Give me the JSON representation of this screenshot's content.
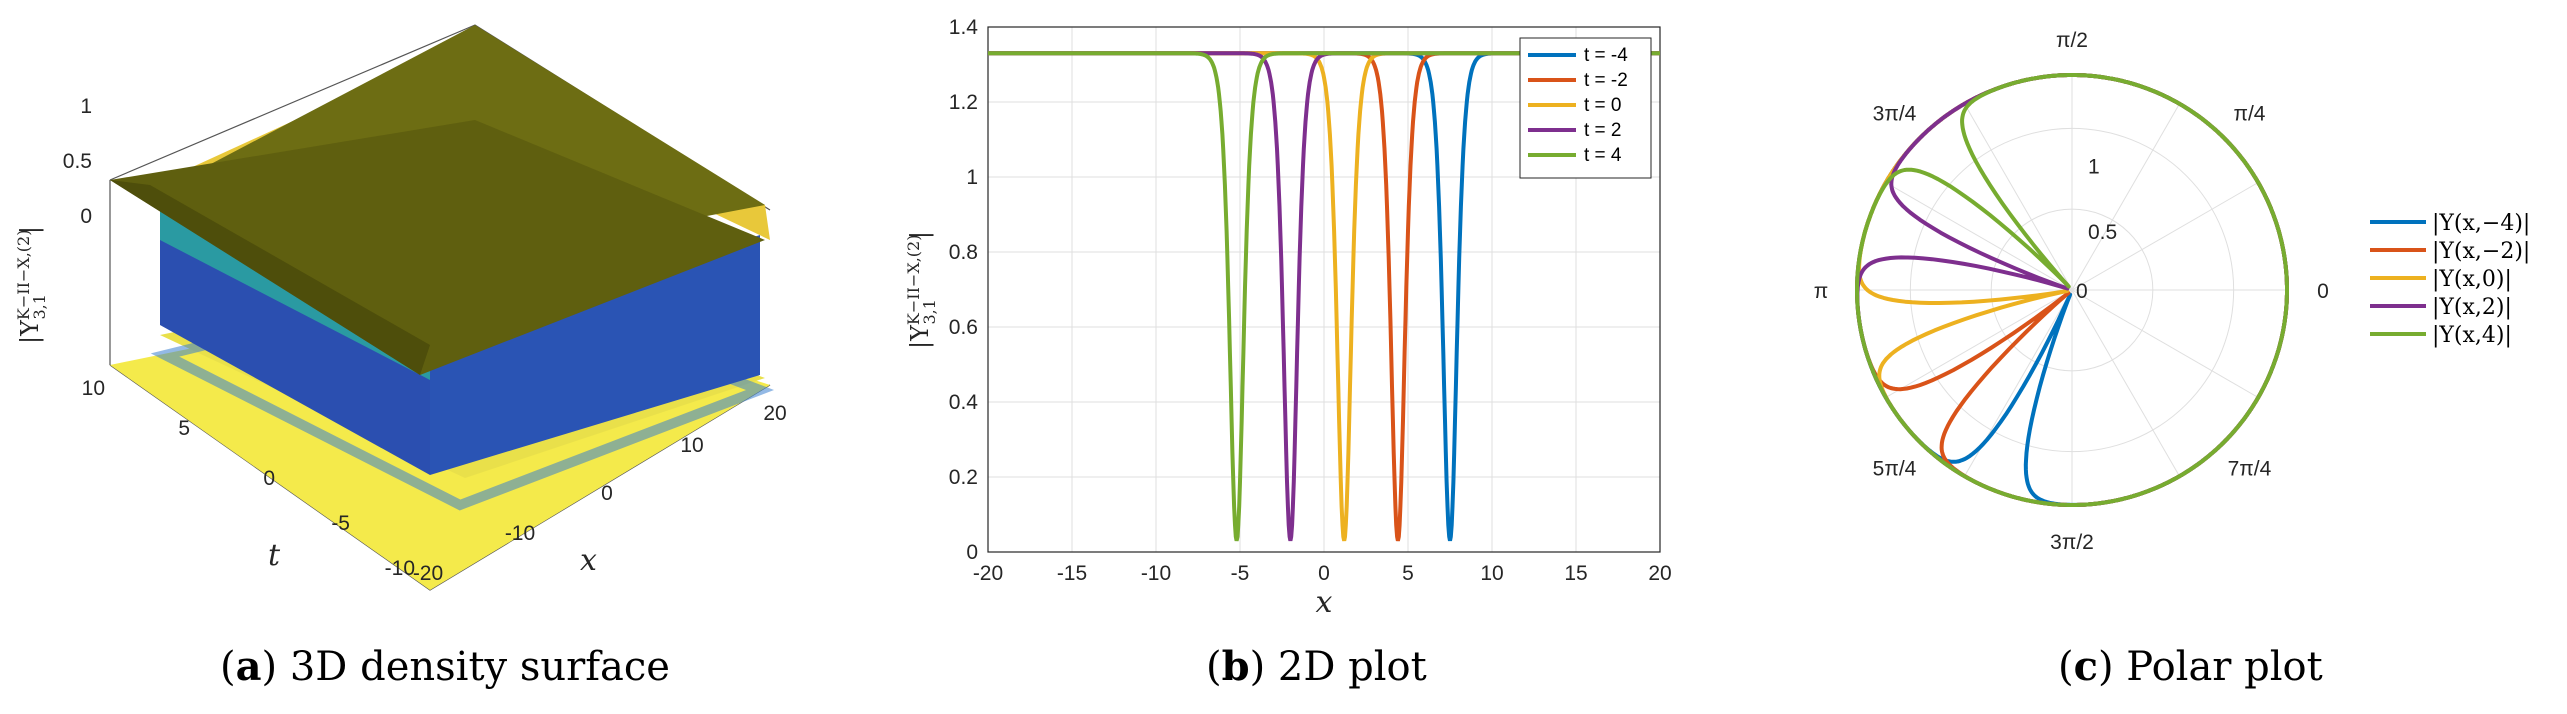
{
  "captions": {
    "a": {
      "open": "(",
      "letter": "a",
      "close": ") 3D density surface"
    },
    "b": {
      "open": "(",
      "letter": "b",
      "close": ") 2D plot"
    },
    "c": {
      "open": "(",
      "letter": "c",
      "close": ") Polar plot"
    }
  },
  "colors": {
    "blue": "#0072BD",
    "orange": "#D95319",
    "yellow": "#EDB120",
    "purple": "#7E2F8E",
    "green": "#77AC30",
    "surface_top": "#6b6b12",
    "surface_high": "#e6c432",
    "surface_low": "#2a3f9a",
    "floor": "#f5e94a"
  },
  "chart_data": [
    {
      "type": "surface",
      "zlabel": "|Υ^{K−II−X,(2)}_{3,1}|",
      "xlabel": "x",
      "ylabel": "t",
      "x_ticks": [
        "-20",
        "-10",
        "0",
        "10",
        "20"
      ],
      "t_ticks": [
        "10",
        "5",
        "0",
        "-5",
        "-10"
      ],
      "z_ticks": [
        "0",
        "0.5",
        "1"
      ],
      "xlim": [
        -20,
        20
      ],
      "tlim": [
        -10,
        10
      ],
      "zlim": [
        0,
        1.33
      ],
      "plateau": 1.33,
      "dip_min": 0.03
    },
    {
      "type": "line",
      "xlabel": "x",
      "ylabel": "|Υ^{K−II−X,(2)}_{3,1}|",
      "xlim": [
        -20,
        20
      ],
      "ylim": [
        0,
        1.4
      ],
      "x_ticks": [
        "-20",
        "-15",
        "-10",
        "-5",
        "0",
        "5",
        "10",
        "15",
        "20"
      ],
      "y_ticks": [
        "0",
        "0.2",
        "0.4",
        "0.6",
        "0.8",
        "1",
        "1.2",
        "1.4"
      ],
      "grid": true,
      "legend": "top-right",
      "plateau": 1.33,
      "minimum": 0.03,
      "series": [
        {
          "name": "t = -4",
          "color": "#0072BD",
          "dip_center": 7.5
        },
        {
          "name": "t = -2",
          "color": "#D95319",
          "dip_center": 4.4
        },
        {
          "name": "t = 0",
          "color": "#EDB120",
          "dip_center": 1.2
        },
        {
          "name": "t = 2",
          "color": "#7E2F8E",
          "dip_center": -2.0
        },
        {
          "name": "t = 4",
          "color": "#77AC30",
          "dip_center": -5.2
        }
      ]
    },
    {
      "type": "polar",
      "rlim": [
        0,
        1.33
      ],
      "r_ticks": [
        "0",
        "0.5",
        "1"
      ],
      "theta_labels": [
        "0",
        "π/4",
        "π/2",
        "3π/4",
        "π",
        "5π/4",
        "3π/2",
        "7π/4"
      ],
      "grid": true,
      "legend": "right",
      "series": [
        {
          "name": "|Υ(x,−4)|",
          "color": "#0072BD",
          "dip_center": 7.5
        },
        {
          "name": "|Υ(x,−2)|",
          "color": "#D95319",
          "dip_center": 4.4
        },
        {
          "name": "|Υ(x,0)|",
          "color": "#EDB120",
          "dip_center": 1.2
        },
        {
          "name": "|Υ(x,2)|",
          "color": "#7E2F8E",
          "dip_center": -2.0
        },
        {
          "name": "|Υ(x,4)|",
          "color": "#77AC30",
          "dip_center": -5.2
        }
      ]
    }
  ]
}
